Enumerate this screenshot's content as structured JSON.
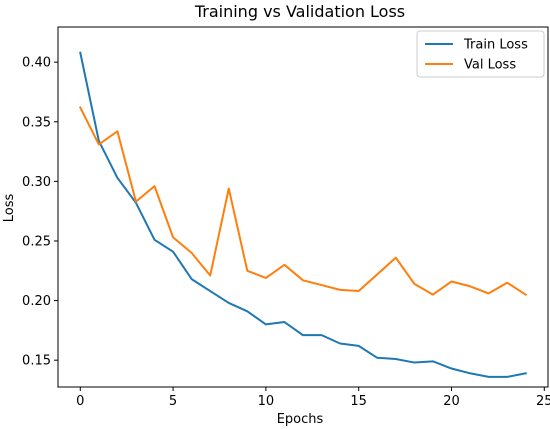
{
  "chart_data": {
    "type": "line",
    "title": "Training vs Validation Loss",
    "xlabel": "Epochs",
    "ylabel": "Loss",
    "xlim": [
      -1.2,
      25.2
    ],
    "ylim": [
      0.1275,
      0.4295
    ],
    "xticks": [
      0,
      5,
      10,
      15,
      20,
      25
    ],
    "yticks": [
      0.15,
      0.2,
      0.25,
      0.3,
      0.35,
      0.4
    ],
    "xtick_labels": [
      "0",
      "5",
      "10",
      "15",
      "20",
      "25"
    ],
    "ytick_labels": [
      "0.15",
      "0.20",
      "0.25",
      "0.30",
      "0.35",
      "0.40"
    ],
    "grid": false,
    "legend_position": "top-right",
    "x": [
      0,
      1,
      2,
      3,
      4,
      5,
      6,
      7,
      8,
      9,
      10,
      11,
      12,
      13,
      14,
      15,
      16,
      17,
      18,
      19,
      20,
      21,
      22,
      23,
      24
    ],
    "series": [
      {
        "name": "Train Loss",
        "color": "#1f77b4",
        "values": [
          0.408,
          0.334,
          0.303,
          0.282,
          0.251,
          0.241,
          0.218,
          0.208,
          0.198,
          0.191,
          0.18,
          0.182,
          0.171,
          0.171,
          0.164,
          0.162,
          0.152,
          0.151,
          0.148,
          0.149,
          0.143,
          0.139,
          0.136,
          0.136,
          0.139
        ]
      },
      {
        "name": "Val Loss",
        "color": "#ff7f0e",
        "values": [
          0.362,
          0.331,
          0.342,
          0.283,
          0.296,
          0.253,
          0.24,
          0.221,
          0.294,
          0.225,
          0.219,
          0.23,
          0.217,
          0.213,
          0.209,
          0.208,
          0.222,
          0.236,
          0.214,
          0.205,
          0.216,
          0.212,
          0.206,
          0.215,
          0.205
        ]
      }
    ]
  }
}
